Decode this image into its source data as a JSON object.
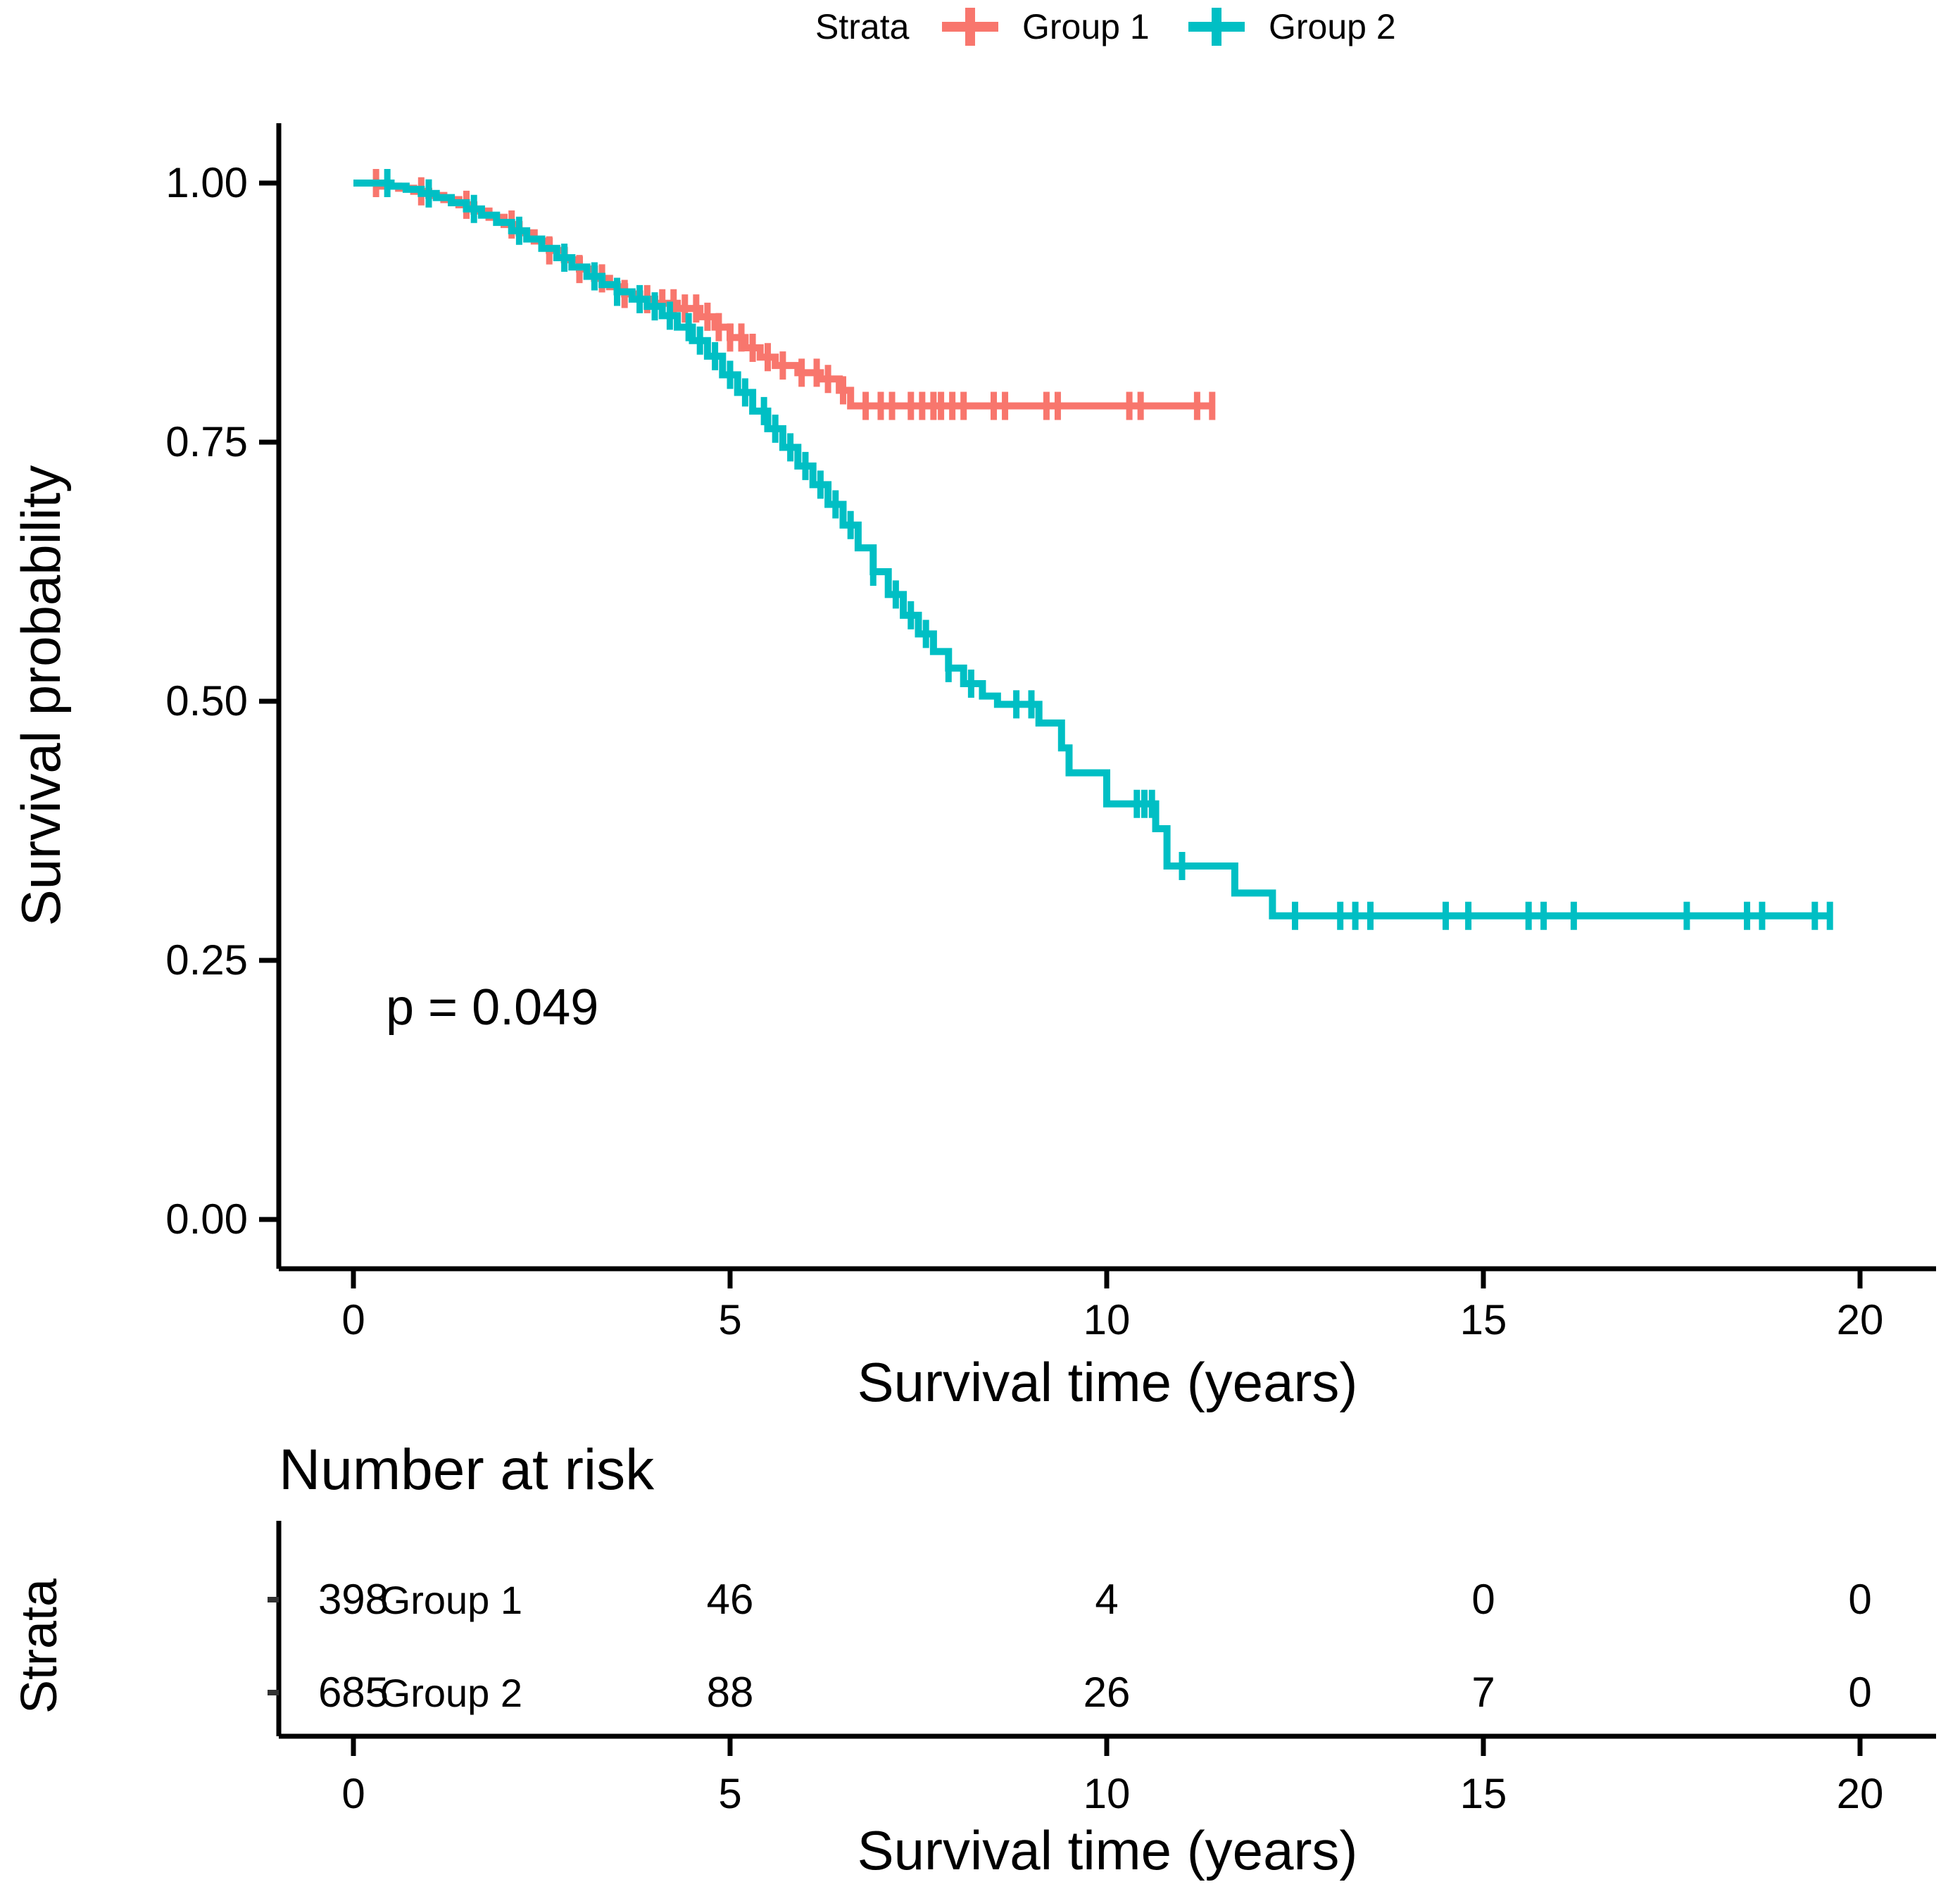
{
  "legend": {
    "title": "Strata",
    "items": [
      {
        "label": "Group 1",
        "color": "#F8766D"
      },
      {
        "label": "Group 2",
        "color": "#00BFC4"
      }
    ]
  },
  "chart_data": {
    "type": "line",
    "subtype": "kaplan-meier-step",
    "title": "",
    "xlabel": "Survival time (years)",
    "ylabel": "Survival probability",
    "xlim": [
      0,
      20
    ],
    "ylim": [
      0,
      1
    ],
    "grid": "off",
    "legend_position": "top",
    "p_value_text": "p = 0.049",
    "x_ticks": {
      "values": [
        0,
        5,
        10,
        15,
        20
      ],
      "labels": [
        "0",
        "5",
        "10",
        "15",
        "20"
      ]
    },
    "y_ticks": {
      "values": [
        1.0,
        0.75,
        0.5,
        0.25,
        0.0
      ],
      "labels": [
        "1.00",
        "0.75",
        "0.50",
        "0.25",
        "0.00"
      ]
    },
    "series": [
      {
        "name": "Group 1",
        "color": "#F8766D",
        "step_points": [
          [
            0,
            1.0
          ],
          [
            0.35,
            0.997
          ],
          [
            0.6,
            0.995
          ],
          [
            0.8,
            0.992
          ],
          [
            1.0,
            0.988
          ],
          [
            1.2,
            0.984
          ],
          [
            1.4,
            0.979
          ],
          [
            1.6,
            0.973
          ],
          [
            1.8,
            0.967
          ],
          [
            2.0,
            0.96
          ],
          [
            2.2,
            0.952
          ],
          [
            2.4,
            0.944
          ],
          [
            2.6,
            0.935
          ],
          [
            2.8,
            0.926
          ],
          [
            3.0,
            0.917
          ],
          [
            3.2,
            0.908
          ],
          [
            3.4,
            0.9
          ],
          [
            3.6,
            0.893
          ],
          [
            3.8,
            0.888
          ],
          [
            4.0,
            0.884
          ],
          [
            4.3,
            0.879
          ],
          [
            4.6,
            0.871
          ],
          [
            4.8,
            0.861
          ],
          [
            5.0,
            0.851
          ],
          [
            5.2,
            0.841
          ],
          [
            5.4,
            0.832
          ],
          [
            5.6,
            0.824
          ],
          [
            5.9,
            0.817
          ],
          [
            6.2,
            0.811
          ],
          [
            6.45,
            0.8
          ],
          [
            6.6,
            0.785
          ],
          [
            11.4,
            0.785
          ]
        ],
        "censor_times": [
          0.3,
          0.9,
          1.5,
          2.1,
          2.6,
          3.0,
          3.3,
          3.6,
          3.9,
          4.1,
          4.25,
          4.4,
          4.55,
          4.7,
          4.85,
          5.0,
          5.15,
          5.3,
          5.5,
          5.7,
          5.95,
          6.15,
          6.3,
          6.5,
          6.8,
          7.0,
          7.15,
          7.4,
          7.55,
          7.7,
          7.8,
          7.95,
          8.1,
          8.5,
          8.65,
          9.2,
          9.35,
          10.3,
          10.45,
          11.2,
          11.4
        ]
      },
      {
        "name": "Group 2",
        "color": "#00BFC4",
        "step_points": [
          [
            0,
            1.0
          ],
          [
            0.5,
            0.997
          ],
          [
            0.7,
            0.994
          ],
          [
            0.9,
            0.99
          ],
          [
            1.1,
            0.986
          ],
          [
            1.3,
            0.981
          ],
          [
            1.5,
            0.975
          ],
          [
            1.7,
            0.969
          ],
          [
            1.9,
            0.962
          ],
          [
            2.1,
            0.954
          ],
          [
            2.3,
            0.946
          ],
          [
            2.5,
            0.937
          ],
          [
            2.7,
            0.928
          ],
          [
            2.9,
            0.919
          ],
          [
            3.1,
            0.91
          ],
          [
            3.3,
            0.902
          ],
          [
            3.5,
            0.895
          ],
          [
            3.7,
            0.888
          ],
          [
            3.9,
            0.881
          ],
          [
            4.1,
            0.872
          ],
          [
            4.3,
            0.861
          ],
          [
            4.5,
            0.848
          ],
          [
            4.7,
            0.833
          ],
          [
            4.9,
            0.815
          ],
          [
            5.1,
            0.798
          ],
          [
            5.3,
            0.78
          ],
          [
            5.5,
            0.763
          ],
          [
            5.7,
            0.745
          ],
          [
            5.9,
            0.727
          ],
          [
            6.1,
            0.709
          ],
          [
            6.3,
            0.69
          ],
          [
            6.5,
            0.67
          ],
          [
            6.7,
            0.648
          ],
          [
            6.9,
            0.625
          ],
          [
            7.1,
            0.603
          ],
          [
            7.3,
            0.583
          ],
          [
            7.5,
            0.565
          ],
          [
            7.7,
            0.548
          ],
          [
            7.9,
            0.532
          ],
          [
            8.1,
            0.517
          ],
          [
            8.35,
            0.505
          ],
          [
            8.55,
            0.497
          ],
          [
            9.1,
            0.479
          ],
          [
            9.4,
            0.455
          ],
          [
            9.5,
            0.431
          ],
          [
            10.0,
            0.401
          ],
          [
            10.65,
            0.377
          ],
          [
            10.8,
            0.341
          ],
          [
            11.7,
            0.315
          ],
          [
            12.2,
            0.293
          ],
          [
            19.6,
            0.293
          ]
        ],
        "censor_times": [
          0.45,
          1.0,
          1.6,
          2.2,
          2.8,
          3.2,
          3.5,
          3.8,
          4.0,
          4.2,
          4.45,
          4.6,
          4.8,
          5.0,
          5.2,
          5.45,
          5.6,
          5.8,
          6.0,
          6.2,
          6.4,
          6.6,
          6.9,
          7.2,
          7.4,
          7.6,
          7.9,
          8.2,
          8.8,
          9.0,
          10.4,
          10.5,
          10.6,
          11.0,
          12.5,
          13.1,
          13.3,
          13.5,
          14.5,
          14.8,
          15.6,
          15.8,
          16.2,
          17.7,
          18.5,
          18.7,
          19.4,
          19.6
        ]
      }
    ]
  },
  "risk_table": {
    "heading": "Number at risk",
    "axis_label": "Strata",
    "xlabel": "Survival time (years)",
    "x_ticks": [
      "0",
      "5",
      "10",
      "15",
      "20"
    ],
    "rows": [
      {
        "label": "Group 1",
        "color": "#F8766D",
        "counts": [
          "398",
          "46",
          "4",
          "0",
          "0"
        ]
      },
      {
        "label": "Group 2",
        "color": "#00BFC4",
        "counts": [
          "685",
          "88",
          "26",
          "7",
          "0"
        ]
      }
    ]
  }
}
